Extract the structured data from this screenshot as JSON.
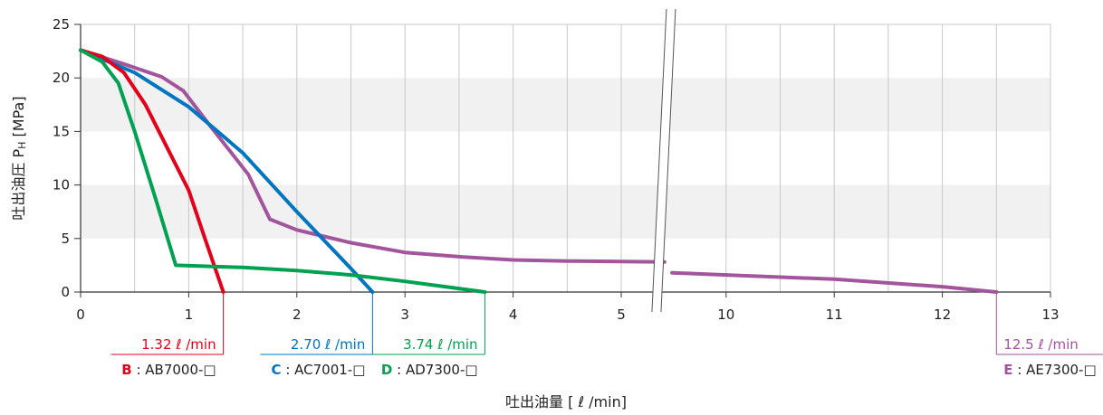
{
  "chart_data": {
    "type": "line",
    "title": "",
    "xlabel": "吐出油量 [ ℓ /min]",
    "ylabel": "吐出油圧 P",
    "ylabel_sub": "H",
    "ylabel_unit": " [MPa]",
    "xlim": [
      0,
      13
    ],
    "ylim": [
      0,
      25
    ],
    "axis_break": {
      "from": 5.4,
      "to": 9.5
    },
    "x_ticks": [
      "0",
      "1",
      "2",
      "3",
      "4",
      "5",
      "10",
      "11",
      "12",
      "13"
    ],
    "y_ticks": [
      "0",
      "5",
      "10",
      "15",
      "20",
      "25"
    ],
    "grid": true,
    "series": [
      {
        "key": "B",
        "color": "#e3001b",
        "flow_label": "1.32 ℓ /min",
        "letter": "B",
        "model": " : AB7000-□",
        "x": [
          0,
          0.2,
          0.4,
          0.6,
          0.8,
          1.0,
          1.15,
          1.32
        ],
        "y": [
          22.6,
          22.0,
          20.5,
          17.5,
          13.5,
          9.5,
          5.0,
          0
        ]
      },
      {
        "key": "C",
        "color": "#0075c1",
        "flow_label": "2.70 ℓ /min",
        "letter": "C",
        "model": " : AC7001-□",
        "x": [
          0,
          0.5,
          1.0,
          1.5,
          2.0,
          2.5,
          2.7
        ],
        "y": [
          22.6,
          20.5,
          17.3,
          13.0,
          7.5,
          2.2,
          0
        ]
      },
      {
        "key": "D",
        "color": "#00a150",
        "flow_label": "3.74 ℓ /min",
        "letter": "D",
        "model": " : AD7300-□",
        "x": [
          0,
          0.2,
          0.35,
          0.5,
          0.7,
          0.88,
          1.5,
          2.0,
          2.5,
          3.0,
          3.74
        ],
        "y": [
          22.6,
          21.5,
          19.5,
          15.0,
          8.5,
          2.5,
          2.3,
          2.0,
          1.6,
          1.0,
          0
        ]
      },
      {
        "key": "E",
        "color": "#a2559d",
        "flow_label": "12.5 ℓ /min",
        "letter": "E",
        "model": " : AE7300-□",
        "x": [
          0,
          0.4,
          0.75,
          0.95,
          1.2,
          1.55,
          1.75,
          2.0,
          2.5,
          3.0,
          3.5,
          4.0,
          4.5,
          5.0,
          5.4
        ],
        "y": [
          22.6,
          21.3,
          20.1,
          18.8,
          15.5,
          11.0,
          6.8,
          5.8,
          4.6,
          3.7,
          3.3,
          3.0,
          2.9,
          2.85,
          2.8
        ],
        "x2": [
          9.5,
          10.0,
          11.0,
          12.0,
          12.5
        ],
        "y2": [
          1.8,
          1.6,
          1.2,
          0.5,
          0
        ]
      }
    ]
  }
}
